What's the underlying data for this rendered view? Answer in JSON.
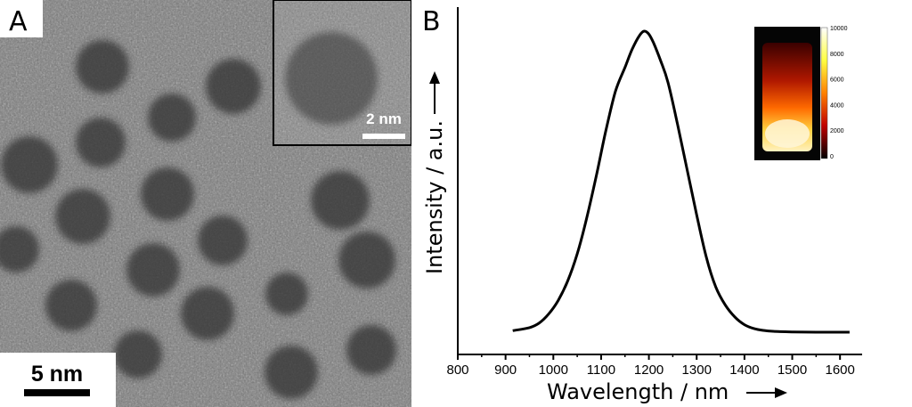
{
  "panel_a": {
    "letter": "A",
    "scale_bar": "5 nm",
    "inset_scale_bar": "2 nm"
  },
  "panel_b": {
    "letter": "B",
    "colorbar_labels": [
      "10000",
      "8000",
      "6000",
      "4000",
      "2000",
      "0"
    ]
  },
  "colors": {
    "ink": "#000000",
    "background": "#ffffff",
    "tem_gray": "#7d7d7d",
    "inset_glow": "#ffe066"
  },
  "chart_data": {
    "type": "line",
    "title": "",
    "xlabel": "Wavelength / nm",
    "ylabel": "Intensity / a.u.",
    "xlim": [
      800,
      1650
    ],
    "ylim": [
      0,
      1.0
    ],
    "x_ticks": [
      800,
      900,
      1000,
      1100,
      1200,
      1300,
      1400,
      1500,
      1600
    ],
    "grid": false,
    "series": [
      {
        "x": [
          915,
          950,
          970,
          990,
          1010,
          1030,
          1050,
          1070,
          1090,
          1110,
          1130,
          1150,
          1165,
          1180,
          1190,
          1200,
          1210,
          1225,
          1240,
          1260,
          1280,
          1300,
          1320,
          1340,
          1360,
          1380,
          1400,
          1420,
          1440,
          1460,
          1500,
          1550,
          1620
        ],
        "y": [
          0.005,
          0.015,
          0.03,
          0.06,
          0.105,
          0.17,
          0.26,
          0.38,
          0.52,
          0.67,
          0.8,
          0.88,
          0.94,
          0.985,
          1.0,
          0.99,
          0.96,
          0.9,
          0.83,
          0.69,
          0.54,
          0.39,
          0.25,
          0.15,
          0.09,
          0.05,
          0.025,
          0.012,
          0.006,
          0.003,
          0.001,
          0.0,
          0.0
        ]
      }
    ]
  }
}
